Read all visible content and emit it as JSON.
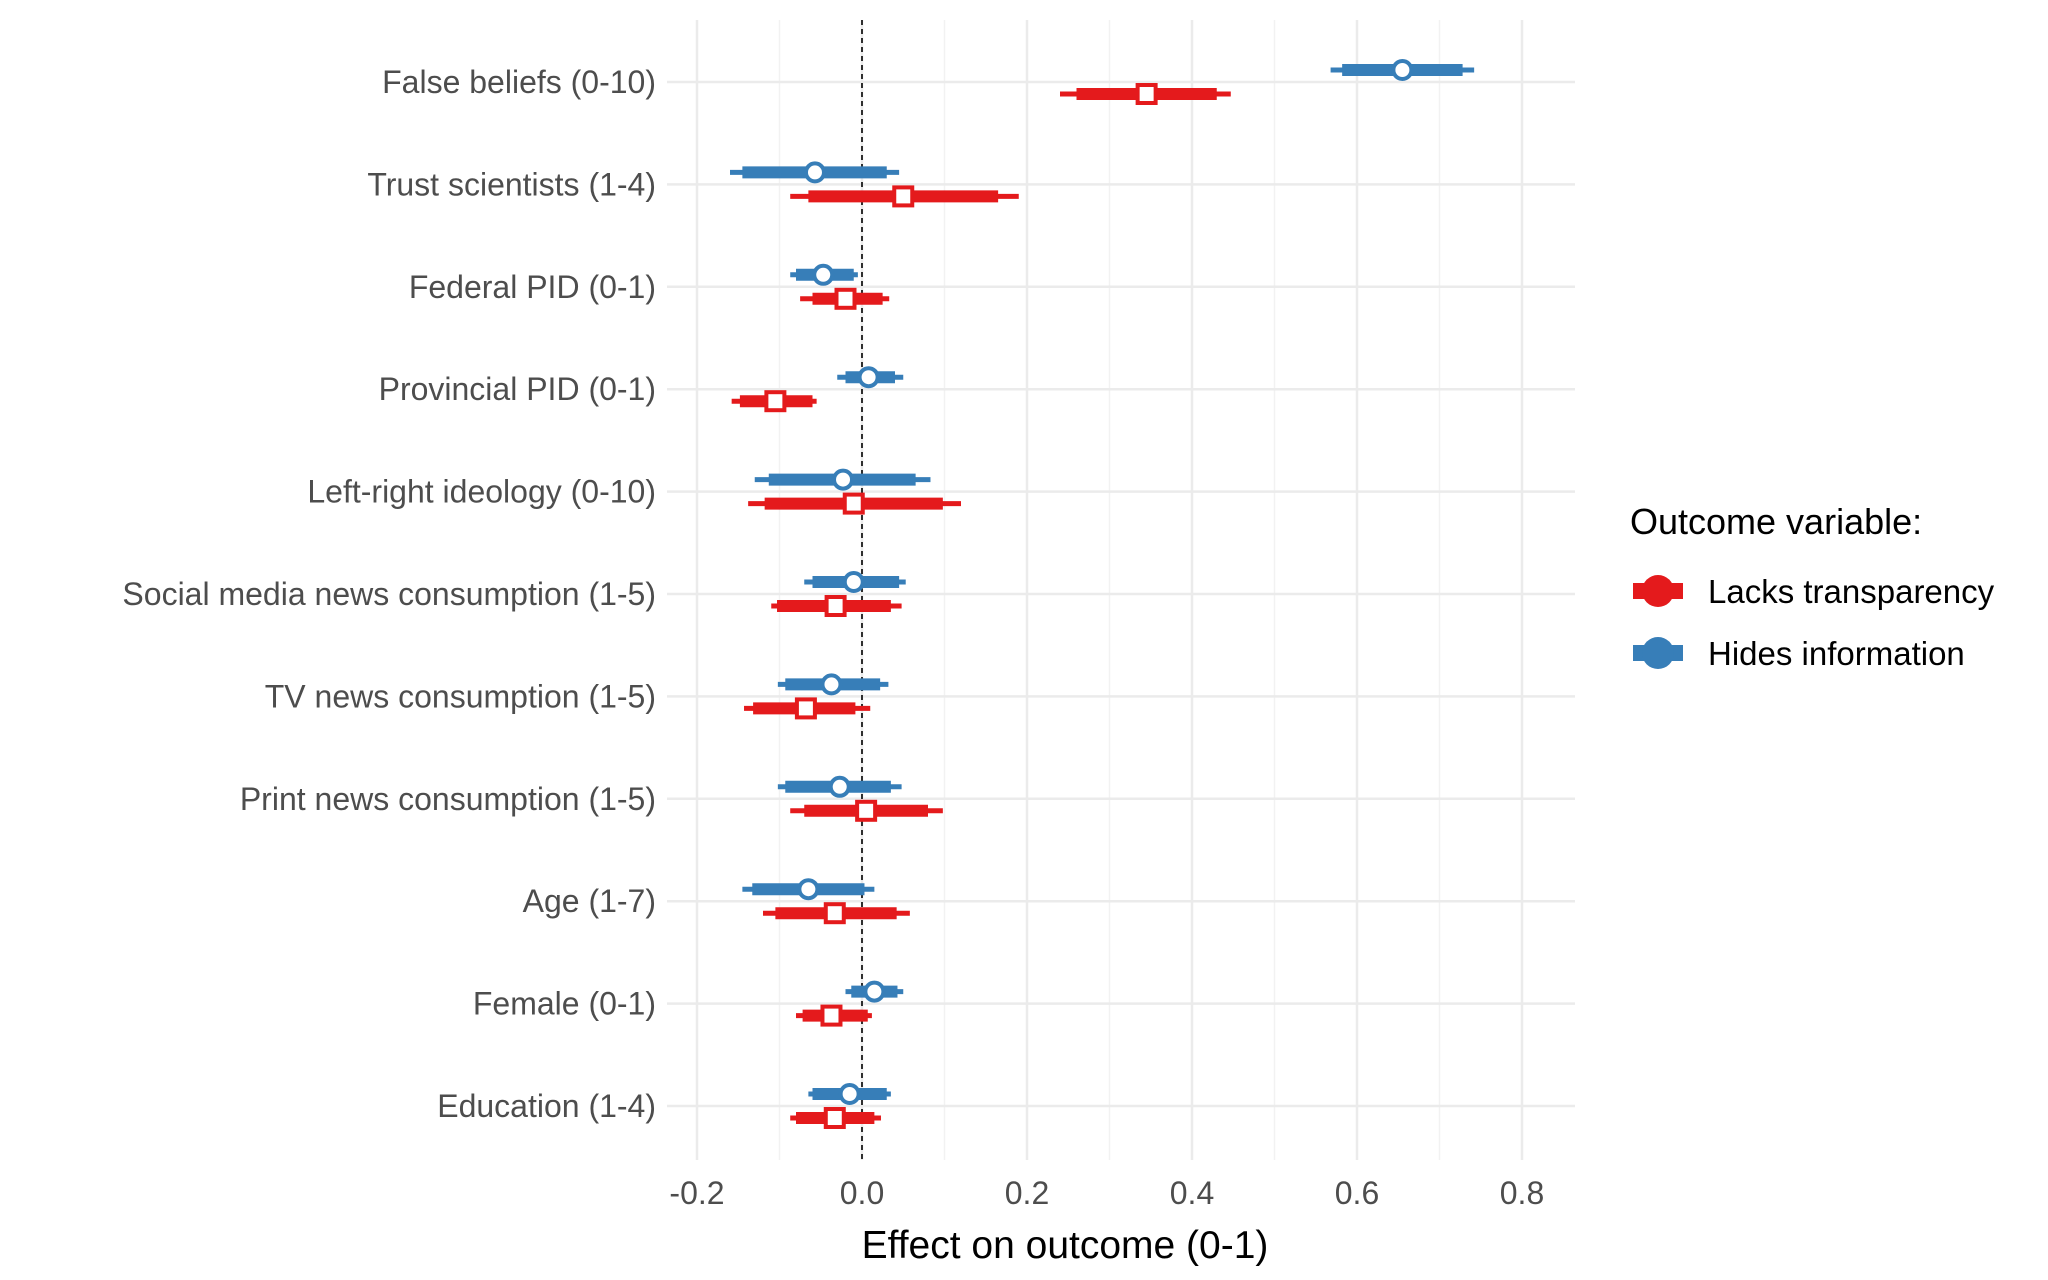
{
  "chart_data": {
    "type": "scatter",
    "subtype": "coefficient plot (point estimates with thick inner and thin outer interval bars)",
    "title": "",
    "xlabel": "Effect on outcome (0-1)",
    "ylabel": "",
    "xlim": [
      -0.22,
      0.86
    ],
    "xticks": [
      -0.2,
      0.0,
      0.2,
      0.4,
      0.6,
      0.8
    ],
    "xtick_labels": [
      "-0.2",
      "0.0",
      "0.2",
      "0.4",
      "0.6",
      "0.8"
    ],
    "reference_line": {
      "x": 0.0,
      "style": "dashed"
    },
    "grid": true,
    "legend": {
      "title": "Outcome variable:",
      "position": "right"
    },
    "categories": [
      "False beliefs (0-10)",
      "Trust scientists (1-4)",
      "Federal PID (0-1)",
      "Provincial PID (0-1)",
      "Left-right ideology (0-10)",
      "Social media news consumption (1-5)",
      "TV news consumption (1-5)",
      "Print news consumption (1-5)",
      "Age (1-7)",
      "Female (0-1)",
      "Education (1-4)"
    ],
    "series": [
      {
        "name": "Lacks transparency",
        "color": "#e41a1c",
        "marker": "square",
        "estimates": [
          0.345,
          0.05,
          -0.02,
          -0.105,
          -0.01,
          -0.032,
          -0.068,
          0.005,
          -0.033,
          -0.037,
          -0.033
        ],
        "inner_low": [
          0.26,
          -0.065,
          -0.06,
          -0.148,
          -0.118,
          -0.103,
          -0.132,
          -0.07,
          -0.105,
          -0.072,
          -0.08
        ],
        "inner_high": [
          0.43,
          0.165,
          0.025,
          -0.06,
          0.098,
          0.035,
          -0.008,
          0.08,
          0.042,
          0.007,
          0.015
        ],
        "outer_low": [
          0.24,
          -0.087,
          -0.075,
          -0.158,
          -0.138,
          -0.11,
          -0.143,
          -0.087,
          -0.12,
          -0.08,
          -0.087
        ],
        "outer_high": [
          0.447,
          0.19,
          0.033,
          -0.055,
          0.12,
          0.048,
          0.01,
          0.098,
          0.058,
          0.012,
          0.023
        ]
      },
      {
        "name": "Hides information",
        "color": "#377eb8",
        "marker": "circle",
        "estimates": [
          0.655,
          -0.057,
          -0.047,
          0.008,
          -0.023,
          -0.01,
          -0.037,
          -0.027,
          -0.065,
          0.015,
          -0.015
        ],
        "inner_low": [
          0.582,
          -0.145,
          -0.08,
          -0.02,
          -0.113,
          -0.06,
          -0.093,
          -0.093,
          -0.133,
          -0.013,
          -0.06
        ],
        "inner_high": [
          0.728,
          0.03,
          -0.01,
          0.04,
          0.065,
          0.045,
          0.022,
          0.035,
          0.003,
          0.043,
          0.03
        ],
        "outer_low": [
          0.568,
          -0.16,
          -0.087,
          -0.03,
          -0.13,
          -0.07,
          -0.102,
          -0.102,
          -0.145,
          -0.02,
          -0.065
        ],
        "outer_high": [
          0.742,
          0.045,
          -0.005,
          0.05,
          0.083,
          0.053,
          0.032,
          0.048,
          0.015,
          0.05,
          0.035
        ]
      }
    ]
  }
}
